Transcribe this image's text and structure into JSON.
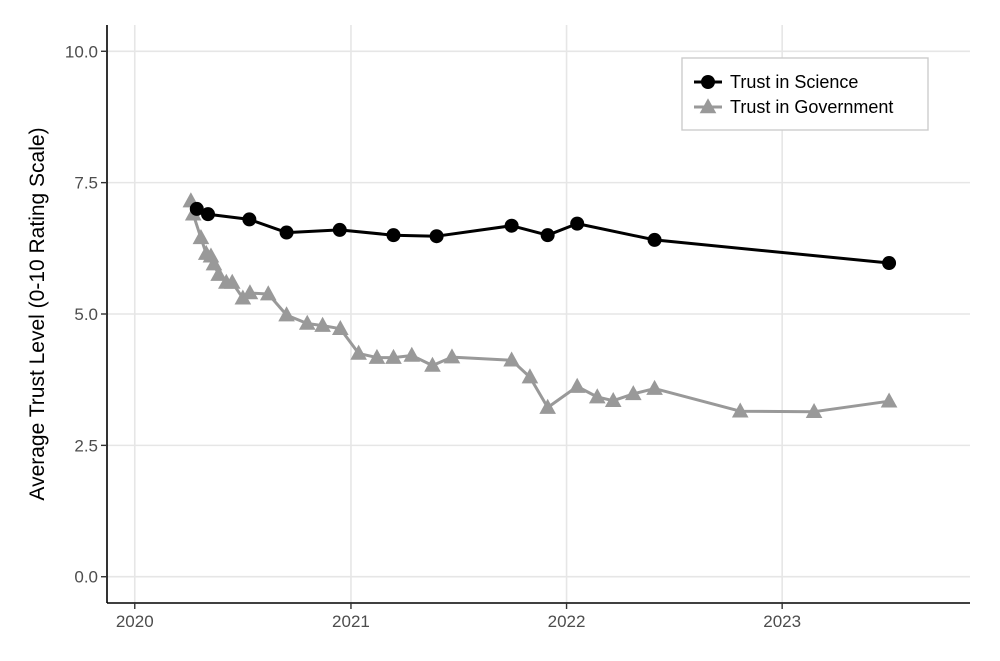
{
  "chart_data": {
    "type": "line",
    "ylabel": "Average Trust Level (0-10 Rating Scale)",
    "xlabel": "",
    "xlim": [
      "2019-11-15",
      "2023-11-15"
    ],
    "ylim": [
      -0.5,
      10.5
    ],
    "x_ticks": [
      {
        "date": "2020-01-01",
        "label": "2020"
      },
      {
        "date": "2021-01-01",
        "label": "2021"
      },
      {
        "date": "2022-01-01",
        "label": "2022"
      },
      {
        "date": "2023-01-01",
        "label": "2023"
      }
    ],
    "y_ticks": [
      {
        "value": 0,
        "label": "0.0"
      },
      {
        "value": 2.5,
        "label": "2.5"
      },
      {
        "value": 5,
        "label": "5.0"
      },
      {
        "value": 7.5,
        "label": "7.5"
      },
      {
        "value": 10,
        "label": "10.0"
      }
    ],
    "grid": true,
    "legend_position": "top-right",
    "series": [
      {
        "name": "Trust in Science",
        "color": "#000000",
        "marker": "circle",
        "points": [
          {
            "date": "2020-04-15",
            "y": 7.0
          },
          {
            "date": "2020-05-04",
            "y": 6.9
          },
          {
            "date": "2020-07-13",
            "y": 6.8
          },
          {
            "date": "2020-09-14",
            "y": 6.55
          },
          {
            "date": "2020-12-13",
            "y": 6.6
          },
          {
            "date": "2021-03-14",
            "y": 6.5
          },
          {
            "date": "2021-05-26",
            "y": 6.48
          },
          {
            "date": "2021-09-30",
            "y": 6.68
          },
          {
            "date": "2021-11-30",
            "y": 6.5
          },
          {
            "date": "2022-01-19",
            "y": 6.72
          },
          {
            "date": "2022-05-30",
            "y": 6.41
          },
          {
            "date": "2023-07-01",
            "y": 5.97
          }
        ]
      },
      {
        "name": "Trust in Government",
        "color": "#999999",
        "marker": "triangle",
        "points": [
          {
            "date": "2020-04-05",
            "y": 7.15
          },
          {
            "date": "2020-04-09",
            "y": 6.9
          },
          {
            "date": "2020-04-22",
            "y": 6.45
          },
          {
            "date": "2020-05-01",
            "y": 6.15
          },
          {
            "date": "2020-05-09",
            "y": 6.1
          },
          {
            "date": "2020-05-14",
            "y": 5.95
          },
          {
            "date": "2020-05-22",
            "y": 5.75
          },
          {
            "date": "2020-06-04",
            "y": 5.6
          },
          {
            "date": "2020-06-14",
            "y": 5.6
          },
          {
            "date": "2020-07-02",
            "y": 5.3
          },
          {
            "date": "2020-07-14",
            "y": 5.4
          },
          {
            "date": "2020-08-14",
            "y": 5.38
          },
          {
            "date": "2020-09-14",
            "y": 4.98
          },
          {
            "date": "2020-10-19",
            "y": 4.82
          },
          {
            "date": "2020-11-14",
            "y": 4.78
          },
          {
            "date": "2020-12-14",
            "y": 4.72
          },
          {
            "date": "2021-01-14",
            "y": 4.25
          },
          {
            "date": "2021-02-14",
            "y": 4.17
          },
          {
            "date": "2021-03-14",
            "y": 4.17
          },
          {
            "date": "2021-04-14",
            "y": 4.21
          },
          {
            "date": "2021-05-19",
            "y": 4.02
          },
          {
            "date": "2021-06-21",
            "y": 4.18
          },
          {
            "date": "2021-09-30",
            "y": 4.12
          },
          {
            "date": "2021-10-31",
            "y": 3.8
          },
          {
            "date": "2021-11-30",
            "y": 3.22
          },
          {
            "date": "2022-01-19",
            "y": 3.62
          },
          {
            "date": "2022-02-22",
            "y": 3.42
          },
          {
            "date": "2022-03-21",
            "y": 3.35
          },
          {
            "date": "2022-04-24",
            "y": 3.48
          },
          {
            "date": "2022-05-30",
            "y": 3.58
          },
          {
            "date": "2022-10-22",
            "y": 3.15
          },
          {
            "date": "2023-02-24",
            "y": 3.14
          },
          {
            "date": "2023-07-01",
            "y": 3.34
          }
        ]
      }
    ]
  }
}
